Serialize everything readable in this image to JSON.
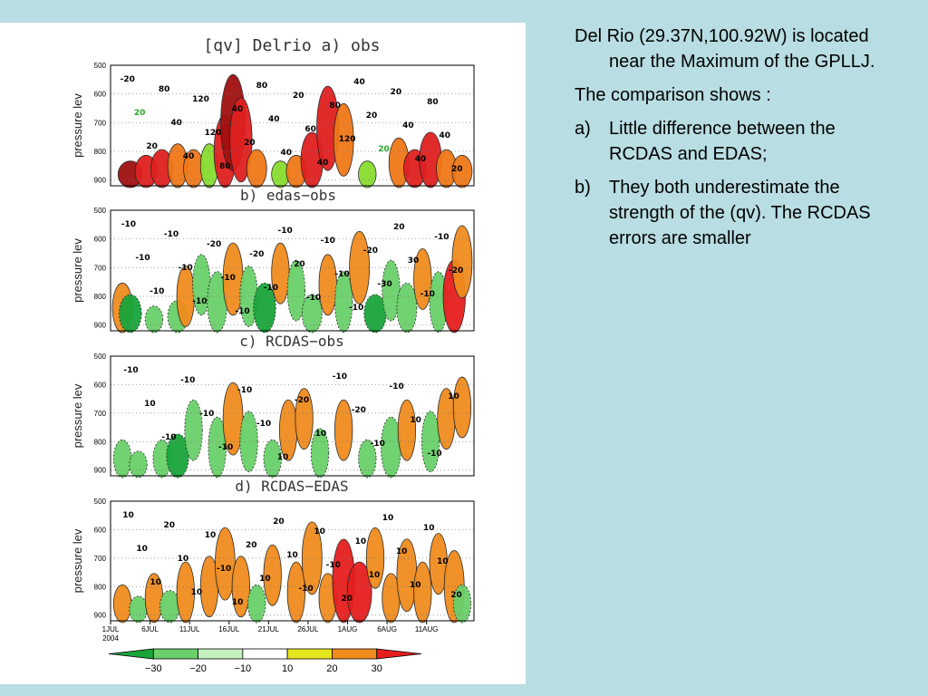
{
  "notes": {
    "location": "Del Rio (29.37N,100.92W) is located near the Maximum of the GPLLJ.",
    "intro": "The comparison shows :",
    "items": [
      {
        "marker": "a)",
        "text": "Little difference between the RCDAS and EDAS;"
      },
      {
        "marker": "b)",
        "text": "They both underestimate the strength of the (qv). The RCDAS errors are smaller"
      }
    ]
  },
  "chart_data": {
    "type": "heatmap",
    "figure_title": "[qv] Delrio a) obs",
    "ylabel": "pressure lev",
    "yticks": [
      "500",
      "600",
      "700",
      "800",
      "900"
    ],
    "xticks": [
      "1JUL",
      "6JUL",
      "11JUL",
      "16JUL",
      "21JUL",
      "26JUL",
      "1AUG",
      "6AUG",
      "11AUG"
    ],
    "year_label": "2004",
    "panels": [
      {
        "title": "[qv] Delrio a) obs",
        "contour_labels": [
          "-20",
          "20",
          "20",
          "80",
          "40",
          "40",
          "120",
          "120",
          "80",
          "40",
          "20",
          "80",
          "40",
          "40",
          "20",
          "60",
          "40",
          "80",
          "120",
          "40",
          "20",
          "20",
          "20",
          "40",
          "40",
          "80",
          "40",
          "20"
        ],
        "cells": [
          {
            "day": 2.5,
            "p": 880,
            "v": 30
          },
          {
            "day": 4.5,
            "p": 870,
            "v": 25
          },
          {
            "day": 6.5,
            "p": 860,
            "v": 25
          },
          {
            "day": 8.5,
            "p": 850,
            "v": 20
          },
          {
            "day": 10.5,
            "p": 860,
            "v": 20
          },
          {
            "day": 12.5,
            "p": 850,
            "v": 15
          },
          {
            "day": 14.5,
            "p": 800,
            "v": 25
          },
          {
            "day": 15.5,
            "p": 700,
            "v": 30
          },
          {
            "day": 16.5,
            "p": 760,
            "v": 25
          },
          {
            "day": 18.5,
            "p": 860,
            "v": 20
          },
          {
            "day": 21.5,
            "p": 880,
            "v": 15
          },
          {
            "day": 23.5,
            "p": 870,
            "v": 20
          },
          {
            "day": 25.5,
            "p": 830,
            "v": 25
          },
          {
            "day": 27.5,
            "p": 720,
            "v": 25
          },
          {
            "day": 29.5,
            "p": 760,
            "v": 20
          },
          {
            "day": 32.5,
            "p": 880,
            "v": 15
          },
          {
            "day": 36.5,
            "p": 840,
            "v": 20
          },
          {
            "day": 38.5,
            "p": 860,
            "v": 25
          },
          {
            "day": 40.5,
            "p": 830,
            "v": 25
          },
          {
            "day": 42.5,
            "p": 860,
            "v": 20
          },
          {
            "day": 44.5,
            "p": 870,
            "v": 20
          }
        ]
      },
      {
        "title": "b) edas−obs",
        "contour_labels": [
          "-10",
          "-10",
          "-10",
          "-10",
          "-10",
          "-10",
          "-20",
          "-10",
          "-10",
          "-20",
          "-10",
          "-10",
          "20",
          "-10",
          "-10",
          "-10",
          "-10",
          "-20",
          "-30",
          "20",
          "30",
          "-10",
          "-10",
          "-20"
        ],
        "cells": [
          {
            "day": 1.5,
            "p": 840,
            "v": 20
          },
          {
            "day": 2.5,
            "p": 860,
            "v": -25
          },
          {
            "day": 5.5,
            "p": 880,
            "v": -15
          },
          {
            "day": 8.5,
            "p": 870,
            "v": -20
          },
          {
            "day": 9.5,
            "p": 800,
            "v": 15
          },
          {
            "day": 11.5,
            "p": 760,
            "v": -15
          },
          {
            "day": 13.5,
            "p": 820,
            "v": -20
          },
          {
            "day": 15.5,
            "p": 740,
            "v": 20
          },
          {
            "day": 17.5,
            "p": 800,
            "v": -15
          },
          {
            "day": 19.5,
            "p": 840,
            "v": -25
          },
          {
            "day": 21.5,
            "p": 720,
            "v": 15
          },
          {
            "day": 23.5,
            "p": 780,
            "v": -15
          },
          {
            "day": 25.5,
            "p": 860,
            "v": -20
          },
          {
            "day": 27.5,
            "p": 760,
            "v": 15
          },
          {
            "day": 29.5,
            "p": 820,
            "v": -15
          },
          {
            "day": 31.5,
            "p": 700,
            "v": 20
          },
          {
            "day": 33.5,
            "p": 860,
            "v": -25
          },
          {
            "day": 35.5,
            "p": 780,
            "v": -15
          },
          {
            "day": 37.5,
            "p": 840,
            "v": -20
          },
          {
            "day": 39.5,
            "p": 740,
            "v": 15
          },
          {
            "day": 41.5,
            "p": 820,
            "v": -15
          },
          {
            "day": 43.5,
            "p": 800,
            "v": 25
          },
          {
            "day": 44.5,
            "p": 680,
            "v": 20
          }
        ]
      },
      {
        "title": "c) RCDAS−obs",
        "contour_labels": [
          "-10",
          "10",
          "-10",
          "-10",
          "-10",
          "-10",
          "-10",
          "-10",
          "10",
          "-20",
          "10",
          "-10",
          "-20",
          "-10",
          "-10",
          "10",
          "-10",
          "10"
        ],
        "cells": [
          {
            "day": 1.5,
            "p": 860,
            "v": -15
          },
          {
            "day": 3.5,
            "p": 880,
            "v": -15
          },
          {
            "day": 6.5,
            "p": 860,
            "v": -15
          },
          {
            "day": 8.5,
            "p": 850,
            "v": -25
          },
          {
            "day": 10.5,
            "p": 760,
            "v": -15
          },
          {
            "day": 13.5,
            "p": 820,
            "v": -15
          },
          {
            "day": 15.5,
            "p": 720,
            "v": 20
          },
          {
            "day": 17.5,
            "p": 800,
            "v": -15
          },
          {
            "day": 20.5,
            "p": 860,
            "v": -15
          },
          {
            "day": 22.5,
            "p": 760,
            "v": 15
          },
          {
            "day": 24.5,
            "p": 720,
            "v": 15
          },
          {
            "day": 26.5,
            "p": 840,
            "v": -15
          },
          {
            "day": 29.5,
            "p": 760,
            "v": 15
          },
          {
            "day": 32.5,
            "p": 860,
            "v": -15
          },
          {
            "day": 35.5,
            "p": 820,
            "v": -20
          },
          {
            "day": 37.5,
            "p": 760,
            "v": 15
          },
          {
            "day": 40.5,
            "p": 800,
            "v": -15
          },
          {
            "day": 42.5,
            "p": 720,
            "v": 15
          },
          {
            "day": 44.5,
            "p": 680,
            "v": 15
          }
        ]
      },
      {
        "title": "d) RCDAS−EDAS",
        "contour_labels": [
          "10",
          "10",
          "10",
          "20",
          "10",
          "10",
          "10",
          "-10",
          "10",
          "20",
          "10",
          "20",
          "10",
          "-10",
          "10",
          "-10",
          "20",
          "10",
          "10",
          "10",
          "10",
          "10",
          "10",
          "10",
          "20"
        ],
        "cells": [
          {
            "day": 1.5,
            "p": 860,
            "v": 15
          },
          {
            "day": 3.5,
            "p": 880,
            "v": -15
          },
          {
            "day": 5.5,
            "p": 840,
            "v": 15
          },
          {
            "day": 7.5,
            "p": 870,
            "v": -20
          },
          {
            "day": 9.5,
            "p": 820,
            "v": 15
          },
          {
            "day": 12.5,
            "p": 800,
            "v": 15
          },
          {
            "day": 14.5,
            "p": 720,
            "v": 20
          },
          {
            "day": 16.5,
            "p": 800,
            "v": 15
          },
          {
            "day": 18.5,
            "p": 860,
            "v": -15
          },
          {
            "day": 20.5,
            "p": 760,
            "v": 15
          },
          {
            "day": 23.5,
            "p": 820,
            "v": 15
          },
          {
            "day": 25.5,
            "p": 700,
            "v": 20
          },
          {
            "day": 27.5,
            "p": 840,
            "v": 15
          },
          {
            "day": 29.5,
            "p": 780,
            "v": 25
          },
          {
            "day": 31.5,
            "p": 820,
            "v": 30
          },
          {
            "day": 33.5,
            "p": 700,
            "v": 15
          },
          {
            "day": 35.5,
            "p": 840,
            "v": 15
          },
          {
            "day": 37.5,
            "p": 760,
            "v": 20
          },
          {
            "day": 39.5,
            "p": 820,
            "v": 15
          },
          {
            "day": 41.5,
            "p": 720,
            "v": 15
          },
          {
            "day": 43.5,
            "p": 800,
            "v": 20
          },
          {
            "day": 44.5,
            "p": 860,
            "v": -15
          }
        ]
      }
    ],
    "colorbar": {
      "ticks": [
        "−30",
        "−20",
        "−10",
        "10",
        "20",
        "30"
      ],
      "colors": [
        "#1aa53a",
        "#6ad06a",
        "#c6f0c0",
        "#ffffff",
        "#e6e61e",
        "#f08c1e",
        "#e61e1e"
      ]
    }
  }
}
